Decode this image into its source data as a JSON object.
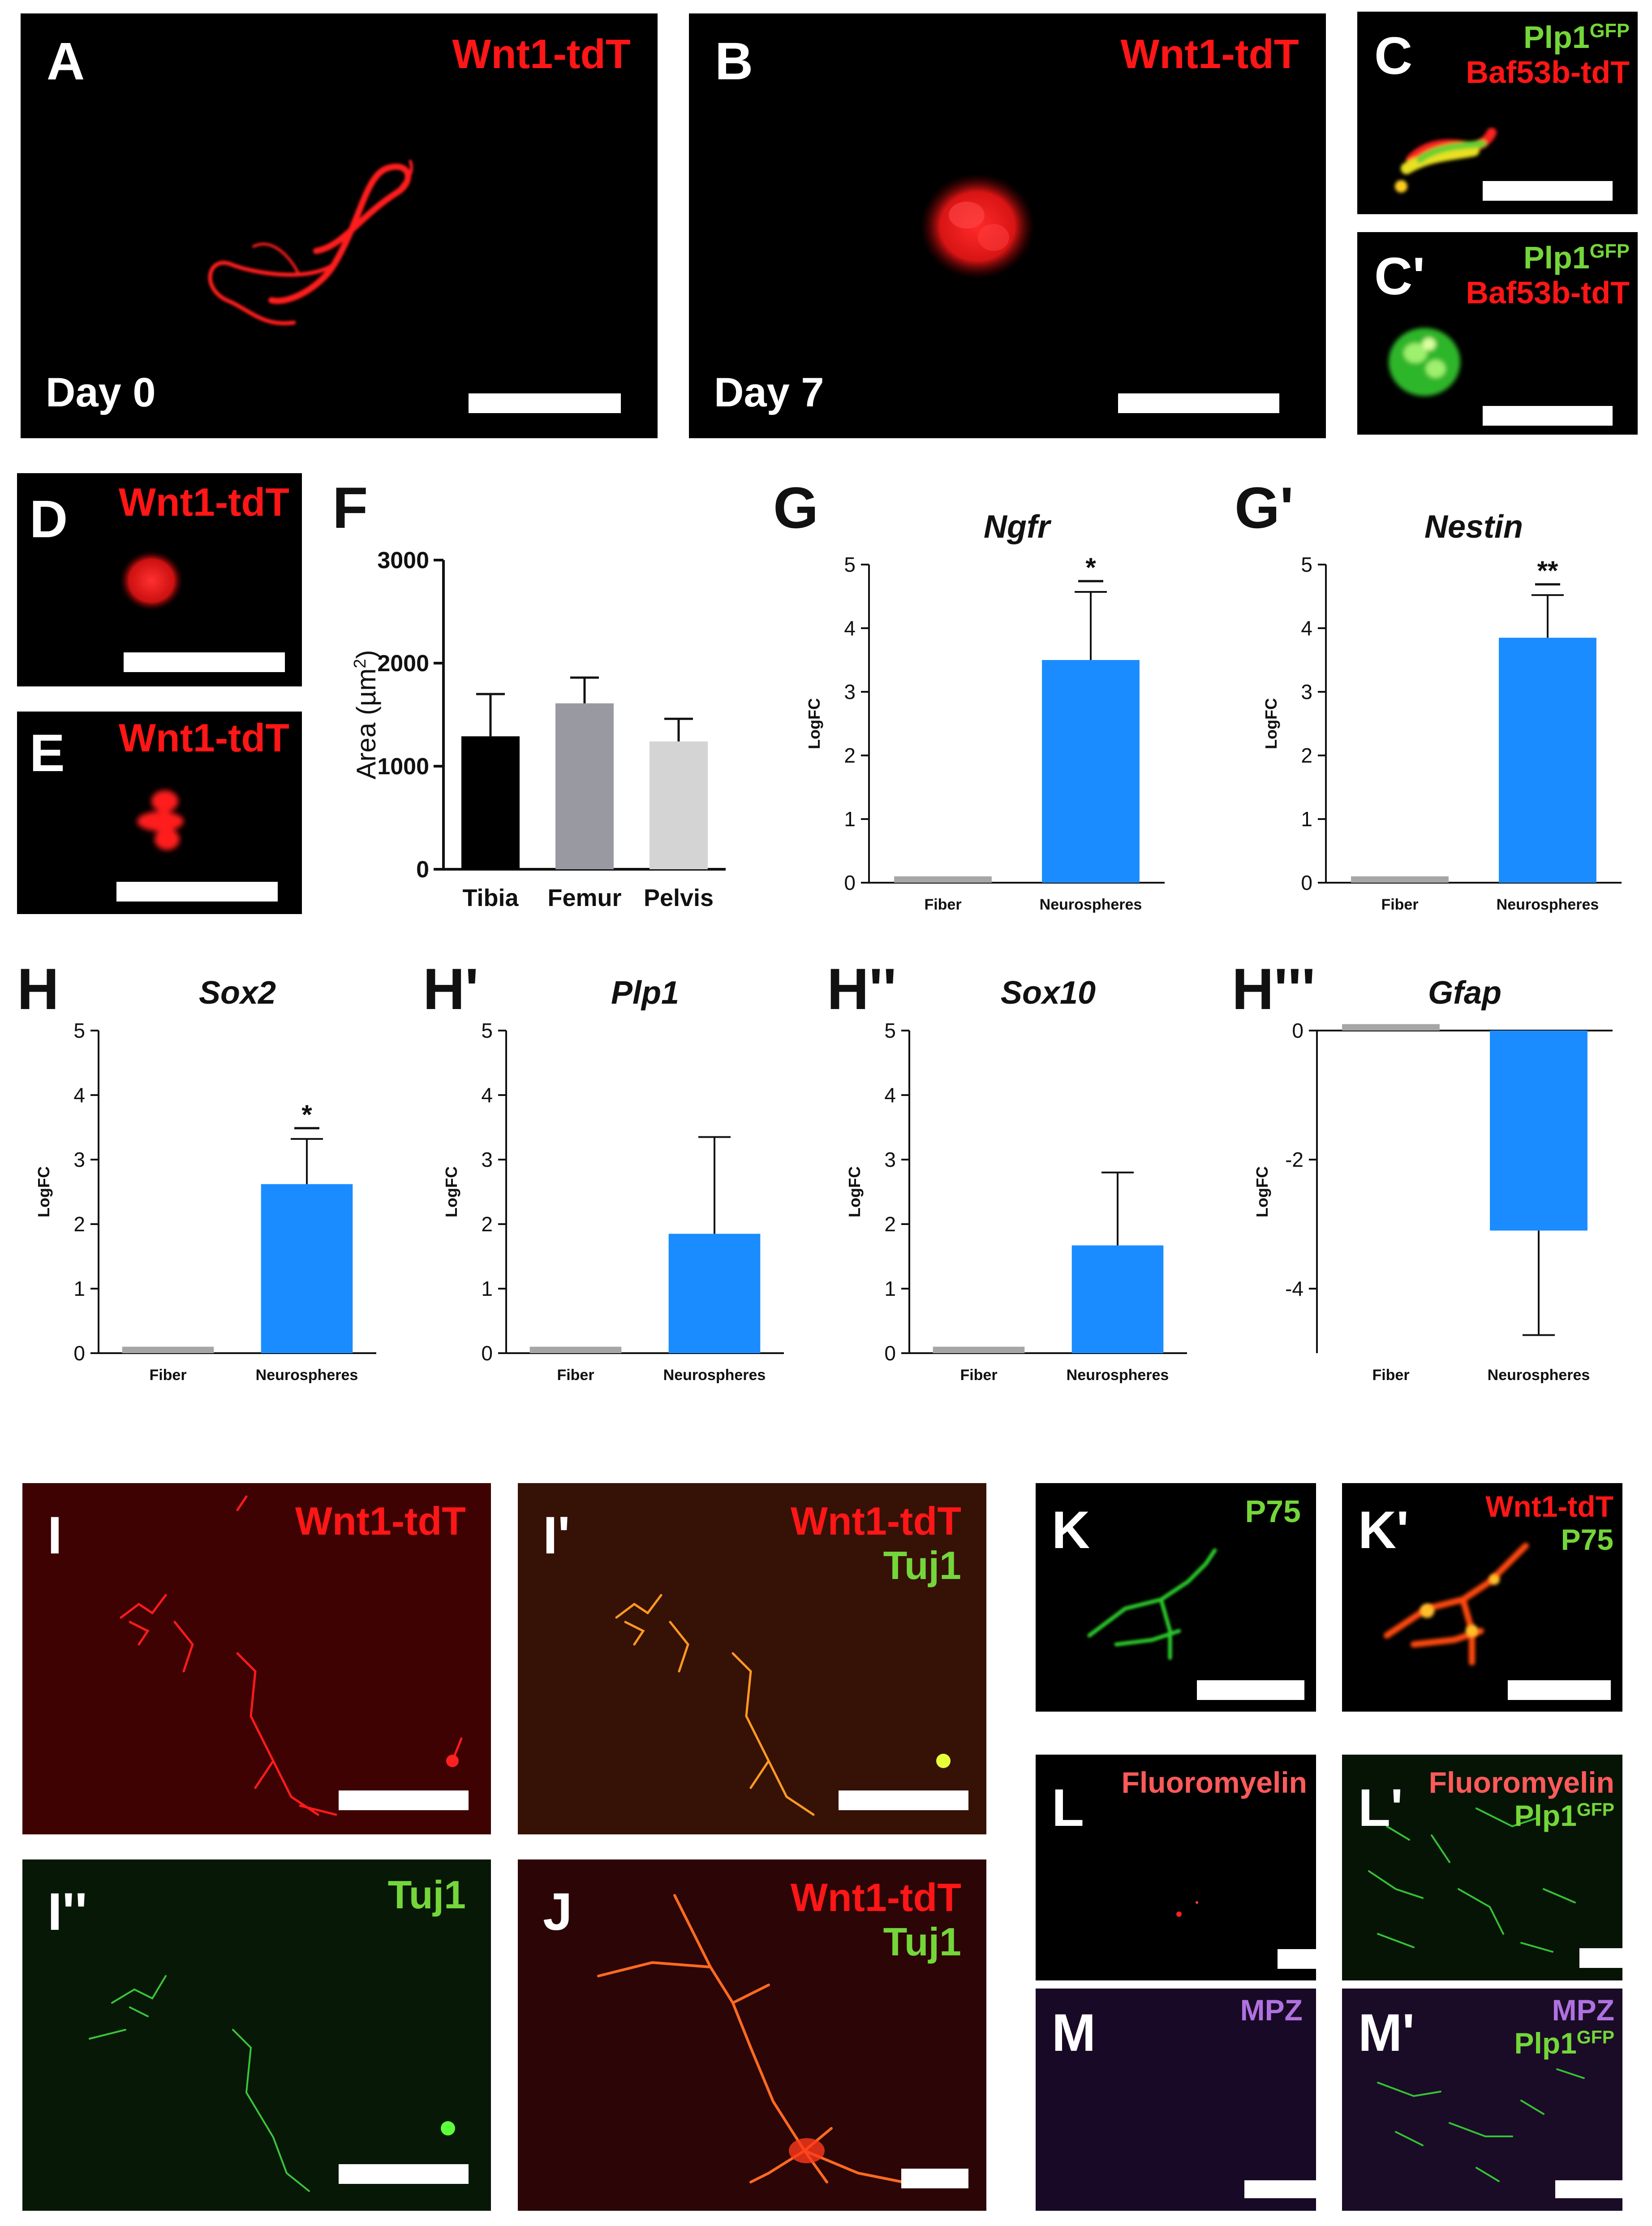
{
  "panels": {
    "A": {
      "letter": "A",
      "label": "Wnt1-tdT",
      "day": "Day 0"
    },
    "B": {
      "letter": "B",
      "label": "Wnt1-tdT",
      "day": "Day 7"
    },
    "C": {
      "letter": "C",
      "label1": "Plp1",
      "label1_sup": "GFP",
      "label2": "Baf53b-tdT"
    },
    "C2": {
      "letter": "C'",
      "label1": "Plp1",
      "label1_sup": "GFP",
      "label2": "Baf53b-tdT"
    },
    "D": {
      "letter": "D",
      "label": "Wnt1-tdT"
    },
    "E": {
      "letter": "E",
      "label": "Wnt1-tdT"
    },
    "I": {
      "letter": "I",
      "label": "Wnt1-tdT"
    },
    "I2": {
      "letter": "I'",
      "label1": "Wnt1-tdT",
      "label2": "Tuj1"
    },
    "I3": {
      "letter": "I''",
      "label": "Tuj1"
    },
    "J": {
      "letter": "J",
      "label1": "Wnt1-tdT",
      "label2": "Tuj1"
    },
    "K": {
      "letter": "K",
      "label": "P75"
    },
    "K2": {
      "letter": "K'",
      "label1": "Wnt1-tdT",
      "label2": "P75"
    },
    "L": {
      "letter": "L",
      "label": "Fluoromyelin"
    },
    "L2": {
      "letter": "L'",
      "label1": "Fluoromyelin",
      "label2": "Plp1",
      "label2_sup": "GFP"
    },
    "M": {
      "letter": "M",
      "label": "MPZ"
    },
    "M2": {
      "letter": "M'",
      "label1": "MPZ",
      "label2": "Plp1",
      "label2_sup": "GFP"
    }
  },
  "colors": {
    "tdtomato": "#ff1616",
    "gfp": "#74d63a",
    "fluoromyelin": "#ff5a5a",
    "mpz": "#b071e0",
    "neurospheres": "#1a8cff",
    "fiber": "#a6a6a6",
    "tibia": "#000000",
    "femur": "#999aa1",
    "pelvis": "#d4d4d4"
  },
  "chart_data": [
    {
      "id": "F",
      "letter": "F",
      "type": "bar",
      "title": "",
      "ylabel": "Area (µm",
      "ylabel_sup": "2",
      "ylabel_end": ")",
      "categories": [
        "Tibia",
        "Femur",
        "Pelvis"
      ],
      "values": [
        1290,
        1610,
        1240
      ],
      "errors": [
        410,
        250,
        220
      ],
      "ylim": [
        0,
        3000
      ],
      "yticks": [
        "0",
        "1000",
        "2000",
        "3000"
      ],
      "colors": [
        "#000000",
        "#999aa1",
        "#d4d4d4"
      ]
    },
    {
      "id": "G",
      "letter": "G",
      "type": "bar",
      "title": "Ngfr",
      "ylabel": "LogFC",
      "categories": [
        "Fiber",
        "Neurospheres"
      ],
      "values": [
        0.1,
        3.5
      ],
      "errors": [
        0,
        1.07
      ],
      "ylim": [
        0,
        5
      ],
      "yticks": [
        "0",
        "1",
        "2",
        "3",
        "4",
        "5"
      ],
      "significance": "*"
    },
    {
      "id": "G2",
      "letter": "G'",
      "type": "bar",
      "title": "Nestin",
      "ylabel": "LogFC",
      "categories": [
        "Fiber",
        "Neurospheres"
      ],
      "values": [
        0.1,
        3.85
      ],
      "errors": [
        0,
        0.67
      ],
      "ylim": [
        0,
        5
      ],
      "yticks": [
        "0",
        "1",
        "2",
        "3",
        "4",
        "5"
      ],
      "significance": "**"
    },
    {
      "id": "H",
      "letter": "H",
      "type": "bar",
      "title": "Sox2",
      "ylabel": "LogFC",
      "categories": [
        "Fiber",
        "Neurospheres"
      ],
      "values": [
        0.1,
        2.62
      ],
      "errors": [
        0,
        0.7
      ],
      "ylim": [
        0,
        5
      ],
      "yticks": [
        "0",
        "1",
        "2",
        "3",
        "4",
        "5"
      ],
      "significance": "*"
    },
    {
      "id": "H2",
      "letter": "H'",
      "type": "bar",
      "title": "Plp1",
      "ylabel": "LogFC",
      "categories": [
        "Fiber",
        "Neurospheres"
      ],
      "values": [
        0.1,
        1.85
      ],
      "errors": [
        0,
        1.5
      ],
      "ylim": [
        0,
        5
      ],
      "yticks": [
        "0",
        "1",
        "2",
        "3",
        "4",
        "5"
      ],
      "significance": ""
    },
    {
      "id": "H3",
      "letter": "H''",
      "type": "bar",
      "title": "Sox10",
      "ylabel": "LogFC",
      "categories": [
        "Fiber",
        "Neurospheres"
      ],
      "values": [
        0.1,
        1.67
      ],
      "errors": [
        0,
        1.13
      ],
      "ylim": [
        0,
        5
      ],
      "yticks": [
        "0",
        "1",
        "2",
        "3",
        "4",
        "5"
      ],
      "significance": ""
    },
    {
      "id": "H4",
      "letter": "H'''",
      "type": "bar",
      "title": "Gfap",
      "ylabel": "LogFC",
      "categories": [
        "Fiber",
        "Neurospheres"
      ],
      "values": [
        0.1,
        -3.1
      ],
      "errors": [
        0,
        1.62
      ],
      "ylim": [
        -5,
        0
      ],
      "yticks": [
        "0",
        "-2",
        "-4"
      ],
      "significance": ""
    }
  ]
}
